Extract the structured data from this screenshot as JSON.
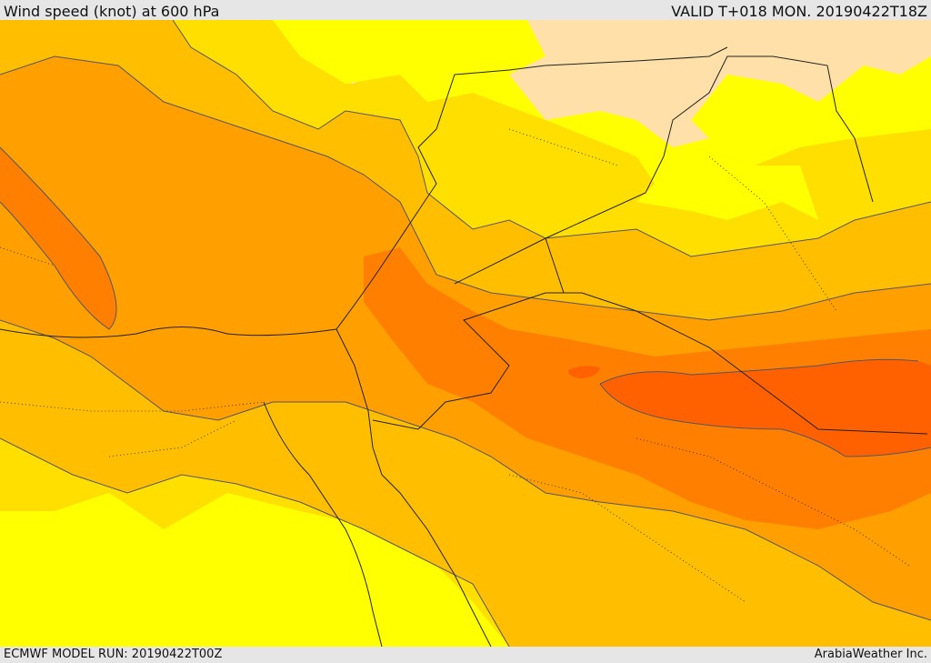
{
  "header": {
    "title": "Wind speed (knot) at 600 hPa",
    "valid_time": "VALID T+018 MON. 20190422T18Z"
  },
  "footer": {
    "model_run": "ECMWF MODEL RUN: 20190422T00Z",
    "credit": "ArabiaWeather Inc."
  },
  "colors": {
    "band_very_light": "#ffe0a8",
    "band_yellow": "#ffff00",
    "band_gold": "#ffdf00",
    "band_amber": "#ffbf00",
    "band_orange": "#ff9f00",
    "band_dark_orange": "#ff8000",
    "band_red_orange": "#ff6000",
    "coastline": "#222222",
    "contour": "#555566"
  }
}
